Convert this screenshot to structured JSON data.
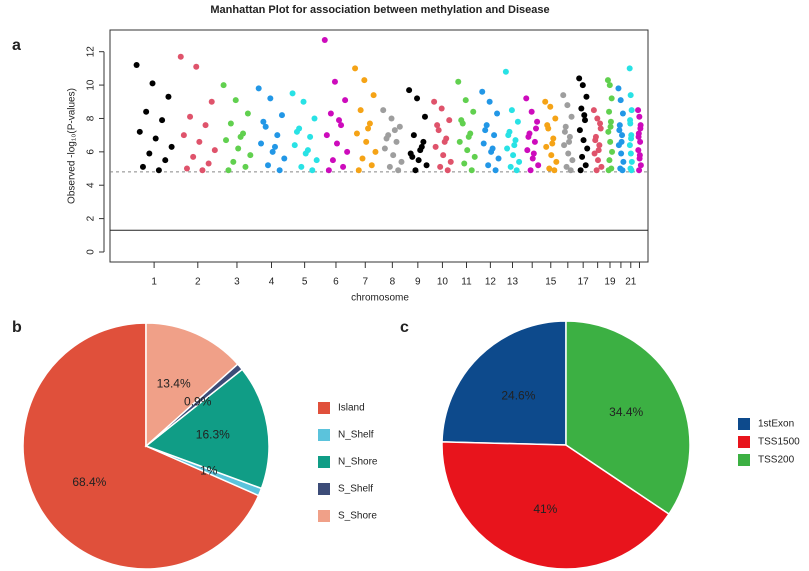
{
  "chart_data": [
    {
      "type": "manhattan",
      "panel": "a",
      "title": "Manhattan Plot for association between methylation and Disease",
      "x_label": "chromosome",
      "y_label": "Observed -log₁₀(P-values)",
      "categories": [
        "1",
        "2",
        "3",
        "4",
        "5",
        "6",
        "7",
        "8",
        "9",
        "10",
        "11",
        "12",
        "13",
        null,
        "15",
        null,
        "17",
        null,
        "19",
        null,
        "21",
        null
      ],
      "colors": [
        "#000000",
        "#df536b",
        "#61d04f",
        "#2297e6",
        "#28e2e5",
        "#cd0bbc",
        "#f5a316",
        "#9e9e9e"
      ],
      "values": [
        [
          11.2,
          10.1,
          9.3,
          8.4,
          7.9,
          7.2,
          6.8,
          6.3,
          5.9,
          5.5,
          5.1,
          4.9
        ],
        [
          11.7,
          11.1,
          9.0,
          8.1,
          7.6,
          7.0,
          6.6,
          6.1,
          5.7,
          5.3,
          5.0,
          4.9
        ],
        [
          10.0,
          9.1,
          8.3,
          7.7,
          7.1,
          6.7,
          6.2,
          5.8,
          5.4,
          5.1,
          4.9,
          6.9
        ],
        [
          9.8,
          9.2,
          8.2,
          7.5,
          7.0,
          6.5,
          6.0,
          5.6,
          5.2,
          4.9,
          7.8,
          6.3
        ],
        [
          9.5,
          9.0,
          8.0,
          7.4,
          6.9,
          6.4,
          5.9,
          5.5,
          5.1,
          4.9,
          7.2,
          6.1
        ],
        [
          12.7,
          10.2,
          9.1,
          8.3,
          7.6,
          7.0,
          6.5,
          6.0,
          5.5,
          5.1,
          4.9,
          7.9
        ],
        [
          11.0,
          10.3,
          9.4,
          8.5,
          7.7,
          7.1,
          6.6,
          6.0,
          5.6,
          5.2,
          4.9,
          7.4
        ],
        [
          8.5,
          8.0,
          7.5,
          7.0,
          6.6,
          6.2,
          5.8,
          5.4,
          5.1,
          4.9,
          6.8,
          7.3
        ],
        [
          9.7,
          9.2,
          8.1,
          7.0,
          6.3,
          5.9,
          5.5,
          5.2,
          4.9,
          6.6,
          5.7,
          6.1
        ],
        [
          9.0,
          8.6,
          7.9,
          7.3,
          6.8,
          6.3,
          5.8,
          5.4,
          5.1,
          4.9,
          7.6,
          6.6
        ],
        [
          10.2,
          9.1,
          8.4,
          7.7,
          7.1,
          6.6,
          6.1,
          5.7,
          5.3,
          4.9,
          7.9,
          6.9
        ],
        [
          9.6,
          9.0,
          8.3,
          7.6,
          7.0,
          6.5,
          6.0,
          5.6,
          5.2,
          4.9,
          7.3,
          6.2
        ],
        [
          10.8,
          8.5,
          7.8,
          7.2,
          6.7,
          6.2,
          5.8,
          5.4,
          5.1,
          4.9,
          7.0,
          6.4
        ],
        [
          9.2,
          8.4,
          7.8,
          7.1,
          6.6,
          6.1,
          5.6,
          5.2,
          4.9,
          7.4,
          6.9,
          5.9
        ],
        [
          9.0,
          8.7,
          8.0,
          7.4,
          6.8,
          6.3,
          5.8,
          5.4,
          5.0,
          4.9,
          7.6,
          6.5
        ],
        [
          9.4,
          8.8,
          8.1,
          7.5,
          6.9,
          6.4,
          5.9,
          5.5,
          5.1,
          4.9,
          7.2,
          6.6
        ],
        [
          10.4,
          10.0,
          9.3,
          8.6,
          7.9,
          7.3,
          6.7,
          6.2,
          5.7,
          5.2,
          4.9,
          8.2
        ],
        [
          8.5,
          8.0,
          7.4,
          6.9,
          6.4,
          5.9,
          5.5,
          5.1,
          4.9,
          7.7,
          6.7,
          6.1
        ],
        [
          10.3,
          10.0,
          9.2,
          8.4,
          7.8,
          7.2,
          6.6,
          6.0,
          5.5,
          5.0,
          4.9,
          7.5
        ],
        [
          9.8,
          9.1,
          8.3,
          7.6,
          7.0,
          6.4,
          5.9,
          5.4,
          5.0,
          4.9,
          7.3,
          6.6
        ],
        [
          11.0,
          9.4,
          8.5,
          7.7,
          7.0,
          6.4,
          5.9,
          5.4,
          5.0,
          4.9,
          7.9,
          6.8
        ],
        [
          8.5,
          8.1,
          7.6,
          7.1,
          6.6,
          6.1,
          5.6,
          5.2,
          4.9,
          7.4,
          6.9,
          5.8
        ]
      ],
      "threshold_lines": [
        {
          "value": 4.8,
          "style": "dashed"
        },
        {
          "value": 1.3,
          "style": "solid"
        }
      ],
      "ylim": [
        -0.6,
        13.3
      ],
      "yticks": [
        0,
        2,
        4,
        6,
        8,
        10,
        12
      ]
    },
    {
      "type": "pie",
      "panel": "b",
      "direction": "counterclockwise",
      "categories": [
        "Island",
        "N_Shelf",
        "N_Shore",
        "S_Shelf",
        "S_Shore"
      ],
      "values": [
        68.4,
        1,
        16.3,
        0.9,
        13.4
      ],
      "value_labels": [
        "68.4%",
        "1%",
        "16.3%",
        "0.9%",
        "13.4%"
      ],
      "colors": [
        "#e0503b",
        "#5bc3dc",
        "#109d86",
        "#3c4c78",
        "#f0a088"
      ]
    },
    {
      "type": "pie",
      "panel": "c",
      "direction": "counterclockwise",
      "categories": [
        "1stExon",
        "TSS1500",
        "TSS200"
      ],
      "values": [
        24.6,
        41,
        34.4
      ],
      "value_labels": [
        "24.6%",
        "41%",
        "34.4%"
      ],
      "colors": [
        "#0d4a8c",
        "#e8141c",
        "#3cb043"
      ]
    }
  ]
}
